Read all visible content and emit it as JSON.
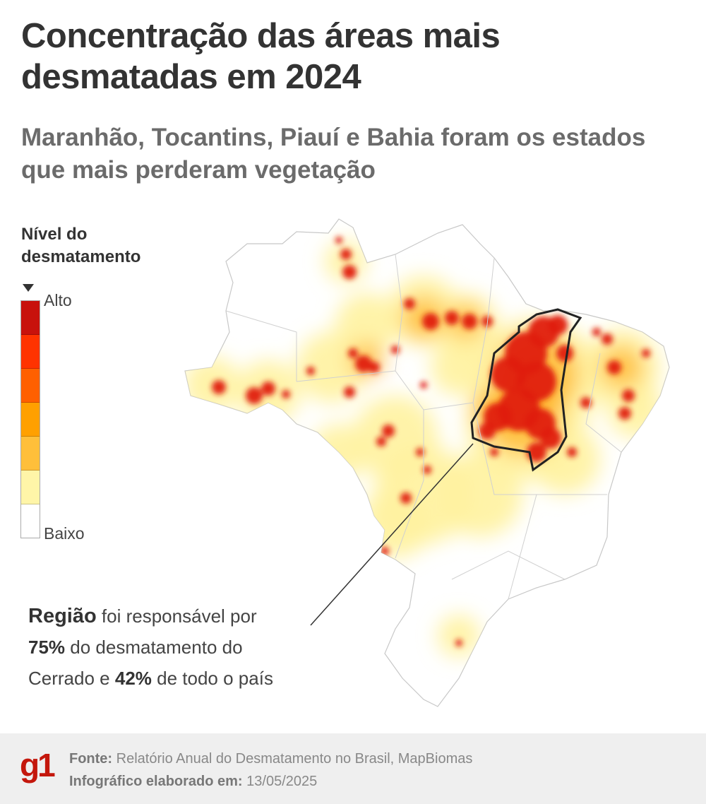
{
  "header": {
    "title": "Concentração das áreas mais desmatadas em 2024",
    "subtitle": "Maranhão, Tocantins, Piauí e Bahia foram os estados que mais perderam vegetação"
  },
  "legend": {
    "title": "Nível do desmatamento",
    "high_label": "Alto",
    "low_label": "Baixo",
    "colors": [
      "#c8120c",
      "#ff3300",
      "#ff6000",
      "#ffa000",
      "#ffbf3a",
      "#fff5a8",
      "#ffffff"
    ]
  },
  "annotation": {
    "line1_bold": "Região",
    "line1_rest": "foi responsável por",
    "line2_bold": "75%",
    "line2_rest": "do desmatamento do",
    "line3_start": "Cerrado e",
    "line3_bold": "42%",
    "line3_rest": "de todo o país"
  },
  "footer": {
    "logo": "g1",
    "source_label": "Fonte:",
    "source_text": "Relatório Anual do Desmatamento no Brasil, MapBiomas",
    "date_label": "Infográfico elaborado em:",
    "date_value": "13/05/2025"
  }
}
